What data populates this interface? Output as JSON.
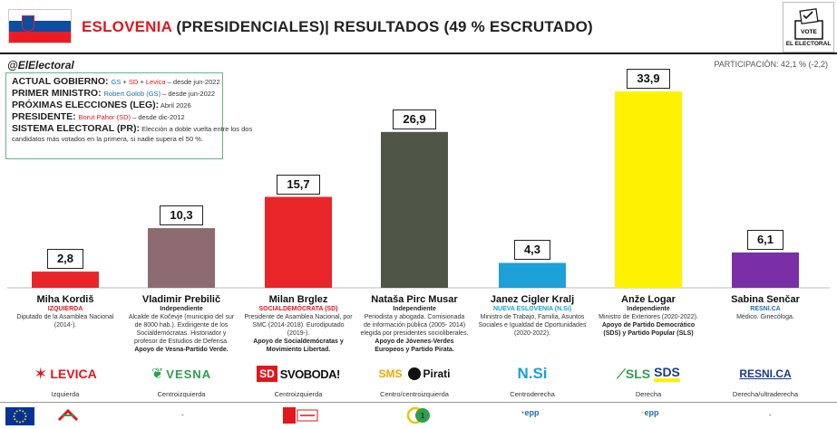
{
  "header": {
    "country": "ESLOVENIA",
    "rest": " (PRESIDENCIALES)| RESULTADOS (49 % ESCRUTADO)",
    "logo_text": "EL ELECTORAL",
    "logo_vote": "VOTE"
  },
  "handle": "@ElElectoral",
  "participation": "PARTICIPACIÓN: 42,1 % (-2,2)",
  "info": {
    "gov_label": "ACTUAL GOBIERNO:",
    "gov_p1": "GS",
    "gov_p2": "SD",
    "gov_p3": "Levica",
    "gov_sep": " + ",
    "gov_since": " – desde jun-2022",
    "pm_label": "PRIMER MINISTRO:",
    "pm_name": "Robert Golob (GS)",
    "pm_since": " – desde jun-2022",
    "next_label": "PRÓXIMAS ELECCIONES (LEG):",
    "next_value": " Abril 2026",
    "pres_label": "PRESIDENTE:",
    "pres_name": "Borut Pahor (SD)",
    "pres_since": " – desde dic-2012",
    "sys_label": "SISTEMA ELECTORAL (PR):",
    "sys_text1": " Elección a doble vuelta entre los dos",
    "sys_text2": "candidatos más votados en la primera, si nadie supera el 50 %."
  },
  "chart_data": {
    "type": "bar",
    "categories": [
      "Miha Kordiš",
      "Vladimir Prebilič",
      "Milan Brglez",
      "Nataša Pirc Musar",
      "Janez Cigler Kralj",
      "Anže Logar",
      "Sabina Senčar"
    ],
    "values": [
      2.8,
      10.3,
      15.7,
      26.9,
      4.3,
      33.9,
      6.1
    ],
    "labels": [
      "2,8",
      "10,3",
      "15,7",
      "26,9",
      "4,3",
      "33,9",
      "6,1"
    ],
    "colors": [
      "#e8262a",
      "#8d6b70",
      "#e8262a",
      "#4f5648",
      "#1ea0d8",
      "#fff200",
      "#7a2fa6"
    ],
    "ylim": [
      0,
      33.9
    ]
  },
  "candidates": [
    {
      "name": "Miha Kordiš",
      "party": "IZQUIERDA",
      "party_color": "#e3161d",
      "desc": "Diputado de la Asamblea Nacional (2014-).",
      "support": "",
      "logo": "LEVICA",
      "ideology": "Izquierda"
    },
    {
      "name": "Vladimir Prebilič",
      "party": "Independiente",
      "party_color": "#222222",
      "desc": "Alcalde de Kočevje (municipio del sur de 8000 hab.). Exdirigente de los Socialdemócratas. Historiador y profesor de Estudios de Defensa.",
      "support": "Apoyo de Vesna-Partido Verde.",
      "logo": "VESNA",
      "ideology": "Centroizquierda"
    },
    {
      "name": "Milan Brglez",
      "party": "SOCIALDEMÓCRATA (SD)",
      "party_color": "#e3161d",
      "desc": "Presidente de Asamblea Nacional, por SMC (2014-2018). Eurodiputado (2019-).",
      "support": "Apoyo de Socialdemócratas y Movimiento Libertad.",
      "logo": "SD SVOBODA!",
      "ideology": "Centroizquierda"
    },
    {
      "name": "Nataša Pirc Musar",
      "party": "Independiente",
      "party_color": "#222222",
      "desc": "Periodista y abogada. Comisionada de información pública (2005- 2014) elegida por presidentes socioliberales.",
      "support": "Apoyo de Jóvenes-Verdes Europeos y Partido Pirata.",
      "logo": "SMS Pirati",
      "ideology": "Centro/centroizquierda"
    },
    {
      "name": "Janez Cigler Kralj",
      "party": "NUEVA ESLOVENIA (N.Si)",
      "party_color": "#1a9fd9",
      "desc": "Ministro de Trabajo, Familia, Asuntos Sociales e Igualdad de Oportunidades (2020-2022).",
      "support": "",
      "logo": "N.Si",
      "ideology": "Centroderecha"
    },
    {
      "name": "Anže Logar",
      "party": "Independiente",
      "party_color": "#222222",
      "desc": "Ministro de Exteriores (2020-2022).",
      "support": "Apoyo de Partido Democrático (SDS) y Partido Popular (SLS)",
      "logo": "SLS SDS",
      "ideology": "Derecha"
    },
    {
      "name": "Sabina Senčar",
      "party": "RESNI.CA",
      "party_color": "#1a6fb5",
      "desc": "Médico. Ginecóloga.",
      "support": "",
      "logo": "RESNI.CA",
      "ideology": "Derecha/ultraderecha"
    }
  ],
  "footer": {
    "dash": "-",
    "epp": "epp"
  }
}
